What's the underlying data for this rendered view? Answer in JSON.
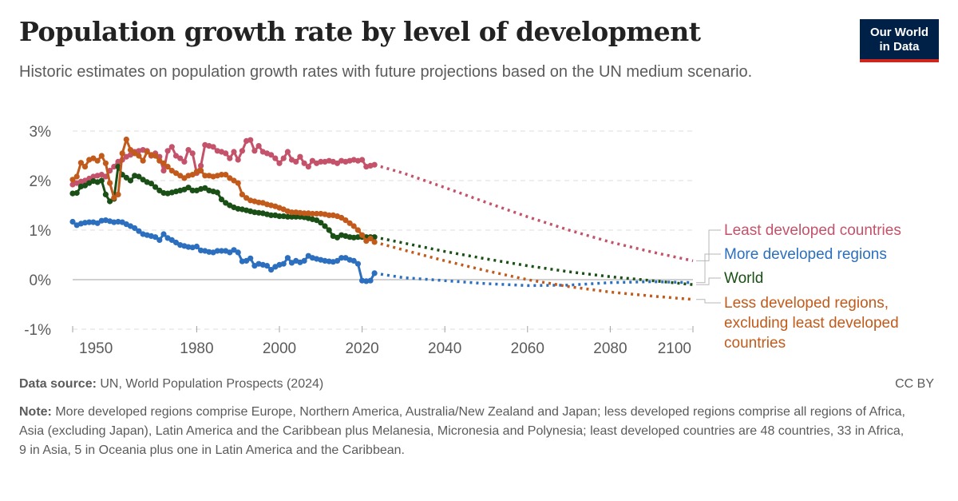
{
  "header": {
    "title": "Population growth rate by level of development",
    "subtitle": "Historic estimates on population growth rates with future projections based on the UN medium scenario.",
    "logo_line1": "Our World",
    "logo_line2": "in Data"
  },
  "footer": {
    "source_label": "Data source:",
    "source_text": "UN, World Population Prospects (2024)",
    "license": "CC BY",
    "note_label": "Note:",
    "note_text": "More developed regions comprise Europe, Northern America, Australia/New Zealand and Japan; less developed regions comprise all regions of Africa, Asia (excluding Japan), Latin America and the Caribbean plus Melanesia, Micronesia and Polynesia; least developed countries are 48 countries, 33 in Africa, 9 in Asia, 5 in Oceania plus one in Latin America and the Caribbean."
  },
  "chart_data": {
    "type": "line",
    "title": "Population growth rate by level of development",
    "xlabel": "",
    "ylabel": "",
    "xlim": [
      1950,
      2100
    ],
    "ylim": [
      -1,
      3
    ],
    "x_ticks": [
      1950,
      1980,
      2000,
      2020,
      2040,
      2060,
      2080,
      2100
    ],
    "y_ticks": [
      -1,
      0,
      1,
      2,
      3
    ],
    "y_tick_labels": [
      "-1%",
      "0%",
      "1%",
      "2%",
      "3%"
    ],
    "grid": "horizontal dashed",
    "legend_placement": "right (end-of-line labels)",
    "projection_start": 2023,
    "series": [
      {
        "name": "Least developed countries",
        "color": "#c4526a",
        "legend_lines": [
          "Least developed countries"
        ],
        "historic": {
          "x": [
            1950,
            1951,
            1952,
            1953,
            1954,
            1955,
            1956,
            1957,
            1958,
            1959,
            1960,
            1961,
            1962,
            1963,
            1964,
            1965,
            1966,
            1967,
            1968,
            1969,
            1970,
            1971,
            1972,
            1973,
            1974,
            1975,
            1976,
            1977,
            1978,
            1979,
            1980,
            1981,
            1982,
            1983,
            1984,
            1985,
            1986,
            1987,
            1988,
            1989,
            1990,
            1991,
            1992,
            1993,
            1994,
            1995,
            1996,
            1997,
            1998,
            1999,
            2000,
            2001,
            2002,
            2003,
            2004,
            2005,
            2006,
            2007,
            2008,
            2009,
            2010,
            2011,
            2012,
            2013,
            2014,
            2015,
            2016,
            2017,
            2018,
            2019,
            2020,
            2021,
            2022,
            2023
          ],
          "y": [
            1.92,
            1.95,
            1.98,
            2.0,
            2.04,
            2.08,
            2.1,
            2.12,
            2.08,
            2.2,
            2.28,
            2.38,
            2.42,
            2.48,
            2.52,
            2.58,
            2.6,
            2.62,
            2.6,
            2.5,
            2.55,
            2.48,
            2.2,
            2.6,
            2.68,
            2.5,
            2.45,
            2.38,
            2.62,
            2.55,
            2.15,
            2.3,
            2.72,
            2.7,
            2.68,
            2.6,
            2.58,
            2.55,
            2.45,
            2.58,
            2.42,
            2.6,
            2.8,
            2.82,
            2.6,
            2.7,
            2.58,
            2.55,
            2.52,
            2.45,
            2.35,
            2.45,
            2.58,
            2.42,
            2.38,
            2.48,
            2.35,
            2.28,
            2.4,
            2.35,
            2.38,
            2.38,
            2.4,
            2.38,
            2.35,
            2.4,
            2.38,
            2.4,
            2.42,
            2.4,
            2.42,
            2.28,
            2.3,
            2.32
          ]
        },
        "projection": {
          "x": [
            2023,
            2030,
            2040,
            2050,
            2060,
            2070,
            2080,
            2090,
            2100
          ],
          "y": [
            2.32,
            2.15,
            1.86,
            1.56,
            1.27,
            1.0,
            0.76,
            0.56,
            0.38
          ]
        }
      },
      {
        "name": "More developed regions",
        "color": "#2c6fbf",
        "legend_lines": [
          "More developed regions"
        ],
        "historic": {
          "x": [
            1950,
            1951,
            1952,
            1953,
            1954,
            1955,
            1956,
            1957,
            1958,
            1959,
            1960,
            1961,
            1962,
            1963,
            1964,
            1965,
            1966,
            1967,
            1968,
            1969,
            1970,
            1971,
            1972,
            1973,
            1974,
            1975,
            1976,
            1977,
            1978,
            1979,
            1980,
            1981,
            1982,
            1983,
            1984,
            1985,
            1986,
            1987,
            1988,
            1989,
            1990,
            1991,
            1992,
            1993,
            1994,
            1995,
            1996,
            1997,
            1998,
            1999,
            2000,
            2001,
            2002,
            2003,
            2004,
            2005,
            2006,
            2007,
            2008,
            2009,
            2010,
            2011,
            2012,
            2013,
            2014,
            2015,
            2016,
            2017,
            2018,
            2019,
            2020,
            2021,
            2022,
            2023
          ],
          "y": [
            1.17,
            1.1,
            1.13,
            1.15,
            1.16,
            1.16,
            1.14,
            1.19,
            1.2,
            1.18,
            1.16,
            1.17,
            1.16,
            1.12,
            1.08,
            1.04,
            0.98,
            0.92,
            0.9,
            0.88,
            0.86,
            0.8,
            0.92,
            0.84,
            0.8,
            0.75,
            0.7,
            0.68,
            0.66,
            0.65,
            0.67,
            0.59,
            0.58,
            0.56,
            0.55,
            0.58,
            0.58,
            0.58,
            0.55,
            0.6,
            0.55,
            0.37,
            0.38,
            0.43,
            0.28,
            0.32,
            0.3,
            0.28,
            0.2,
            0.26,
            0.3,
            0.32,
            0.44,
            0.34,
            0.38,
            0.35,
            0.38,
            0.48,
            0.44,
            0.42,
            0.4,
            0.38,
            0.37,
            0.36,
            0.38,
            0.44,
            0.44,
            0.4,
            0.38,
            0.32,
            -0.02,
            -0.03,
            -0.02,
            0.13
          ]
        },
        "projection": {
          "x": [
            2023,
            2030,
            2040,
            2050,
            2060,
            2070,
            2080,
            2090,
            2100
          ],
          "y": [
            0.13,
            0.04,
            -0.02,
            -0.08,
            -0.12,
            -0.11,
            -0.06,
            -0.04,
            -0.06
          ]
        }
      },
      {
        "name": "World",
        "color": "#1a4f16",
        "legend_lines": [
          "World"
        ],
        "historic": {
          "x": [
            1950,
            1951,
            1952,
            1953,
            1954,
            1955,
            1956,
            1957,
            1958,
            1959,
            1960,
            1961,
            1962,
            1963,
            1964,
            1965,
            1966,
            1967,
            1968,
            1969,
            1970,
            1971,
            1972,
            1973,
            1974,
            1975,
            1976,
            1977,
            1978,
            1979,
            1980,
            1981,
            1982,
            1983,
            1984,
            1985,
            1986,
            1987,
            1988,
            1989,
            1990,
            1991,
            1992,
            1993,
            1994,
            1995,
            1996,
            1997,
            1998,
            1999,
            2000,
            2001,
            2002,
            2003,
            2004,
            2005,
            2006,
            2007,
            2008,
            2009,
            2010,
            2011,
            2012,
            2013,
            2014,
            2015,
            2016,
            2017,
            2018,
            2019,
            2020,
            2021,
            2022,
            2023
          ],
          "y": [
            1.74,
            1.75,
            1.88,
            1.9,
            1.95,
            1.99,
            1.97,
            2.0,
            1.72,
            1.58,
            1.63,
            2.28,
            2.12,
            2.06,
            2.0,
            2.1,
            2.08,
            2.02,
            1.97,
            1.94,
            1.87,
            1.8,
            1.75,
            1.74,
            1.76,
            1.78,
            1.8,
            1.82,
            1.86,
            1.8,
            1.8,
            1.83,
            1.85,
            1.8,
            1.78,
            1.76,
            1.62,
            1.55,
            1.5,
            1.46,
            1.43,
            1.42,
            1.4,
            1.38,
            1.36,
            1.35,
            1.34,
            1.32,
            1.3,
            1.3,
            1.28,
            1.28,
            1.27,
            1.27,
            1.27,
            1.27,
            1.26,
            1.24,
            1.22,
            1.2,
            1.15,
            1.08,
            1.0,
            0.88,
            0.85,
            0.9,
            0.88,
            0.86,
            0.85,
            0.86,
            0.86,
            0.86,
            0.86,
            0.86
          ]
        },
        "projection": {
          "x": [
            2023,
            2030,
            2040,
            2050,
            2060,
            2070,
            2080,
            2090,
            2100
          ],
          "y": [
            0.86,
            0.74,
            0.57,
            0.42,
            0.28,
            0.16,
            0.06,
            -0.02,
            -0.1
          ]
        }
      },
      {
        "name": "Less developed regions, excluding least developed countries",
        "color": "#c15a1a",
        "legend_lines": [
          "Less developed regions,",
          "excluding least developed",
          "countries"
        ],
        "historic": {
          "x": [
            1950,
            1951,
            1952,
            1953,
            1954,
            1955,
            1956,
            1957,
            1958,
            1959,
            1960,
            1961,
            1962,
            1963,
            1964,
            1965,
            1966,
            1967,
            1968,
            1969,
            1970,
            1971,
            1972,
            1973,
            1974,
            1975,
            1976,
            1977,
            1978,
            1979,
            1980,
            1981,
            1982,
            1983,
            1984,
            1985,
            1986,
            1987,
            1988,
            1989,
            1990,
            1991,
            1992,
            1993,
            1994,
            1995,
            1996,
            1997,
            1998,
            1999,
            2000,
            2001,
            2002,
            2003,
            2004,
            2005,
            2006,
            2007,
            2008,
            2009,
            2010,
            2011,
            2012,
            2013,
            2014,
            2015,
            2016,
            2017,
            2018,
            2019,
            2020,
            2021,
            2022,
            2023
          ],
          "y": [
            2.02,
            2.08,
            2.36,
            2.28,
            2.42,
            2.45,
            2.4,
            2.5,
            2.35,
            1.95,
            1.65,
            1.72,
            2.55,
            2.83,
            2.62,
            2.55,
            2.5,
            2.4,
            2.58,
            2.52,
            2.5,
            2.4,
            2.35,
            2.28,
            2.2,
            2.15,
            2.1,
            2.05,
            2.1,
            2.12,
            2.18,
            2.2,
            2.1,
            2.1,
            2.08,
            2.1,
            2.12,
            2.12,
            2.05,
            2.0,
            1.95,
            1.72,
            1.65,
            1.6,
            1.58,
            1.56,
            1.55,
            1.52,
            1.5,
            1.48,
            1.45,
            1.42,
            1.38,
            1.36,
            1.36,
            1.35,
            1.34,
            1.34,
            1.33,
            1.33,
            1.33,
            1.32,
            1.3,
            1.3,
            1.28,
            1.25,
            1.2,
            1.14,
            1.08,
            1.0,
            0.9,
            0.78,
            0.83,
            0.76
          ]
        },
        "projection": {
          "x": [
            2023,
            2030,
            2040,
            2050,
            2060,
            2070,
            2080,
            2090,
            2100
          ],
          "y": [
            0.76,
            0.6,
            0.38,
            0.18,
            0.0,
            -0.14,
            -0.25,
            -0.33,
            -0.4
          ]
        }
      }
    ]
  }
}
